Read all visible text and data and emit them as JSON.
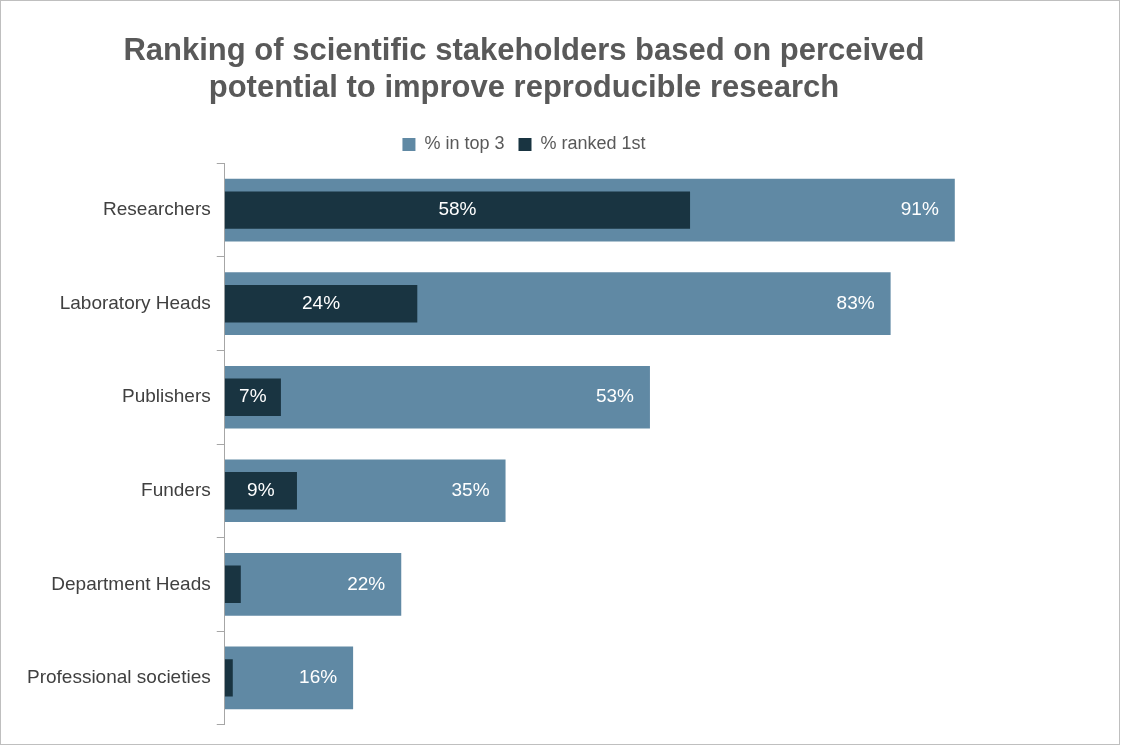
{
  "chart_data": {
    "type": "bar",
    "orientation": "horizontal",
    "title": "Ranking of scientific stakeholders based on perceived potential to improve reproducible research",
    "categories": [
      "Researchers",
      "Laboratory Heads",
      "Publishers",
      "Funders",
      "Department Heads",
      "Professional societies"
    ],
    "series": [
      {
        "name": "% in top 3",
        "color": "#6089a4",
        "values": [
          91,
          83,
          53,
          35,
          22,
          16
        ],
        "value_labels": [
          "91%",
          "83%",
          "53%",
          "35%",
          "22%",
          "16%"
        ]
      },
      {
        "name": "% ranked 1st",
        "color": "#193441",
        "values": [
          58,
          24,
          7,
          9,
          2,
          1
        ],
        "value_labels": [
          "58%",
          "24%",
          "7%",
          "9%",
          null,
          null
        ]
      }
    ],
    "tick_labels": "y",
    "grid": false,
    "legend": "top"
  }
}
